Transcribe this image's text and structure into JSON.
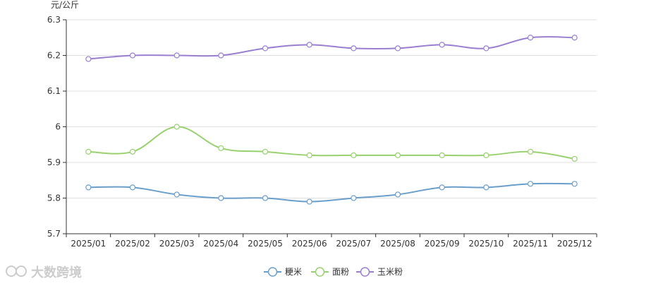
{
  "chart_data": {
    "type": "line",
    "ylabel": "元/公斤",
    "categories": [
      "2025/01",
      "2025/02",
      "2025/03",
      "2025/04",
      "2025/05",
      "2025/06",
      "2025/07",
      "2025/08",
      "2025/09",
      "2025/10",
      "2025/11",
      "2025/12"
    ],
    "ylim": [
      5.7,
      6.3
    ],
    "yticks": [
      "5.7",
      "5.8",
      "5.9",
      "6",
      "6.1",
      "6.2",
      "6.3"
    ],
    "grid": true,
    "legend_position": "bottom-center",
    "series": [
      {
        "name": "粳米",
        "color": "#6a9fcb",
        "values": [
          5.83,
          5.83,
          5.81,
          5.8,
          5.8,
          5.79,
          5.8,
          5.81,
          5.83,
          5.83,
          5.84,
          5.84
        ]
      },
      {
        "name": "面粉",
        "color": "#98d16e",
        "values": [
          5.93,
          5.93,
          6.0,
          5.94,
          5.93,
          5.92,
          5.92,
          5.92,
          5.92,
          5.92,
          5.93,
          5.91
        ]
      },
      {
        "name": "玉米粉",
        "color": "#9a7fd1",
        "values": [
          6.19,
          6.2,
          6.2,
          6.2,
          6.22,
          6.23,
          6.22,
          6.22,
          6.23,
          6.22,
          6.25,
          6.25
        ]
      }
    ]
  },
  "watermark": {
    "text": "大数跨境",
    "icon": "brand-logo-icon"
  }
}
